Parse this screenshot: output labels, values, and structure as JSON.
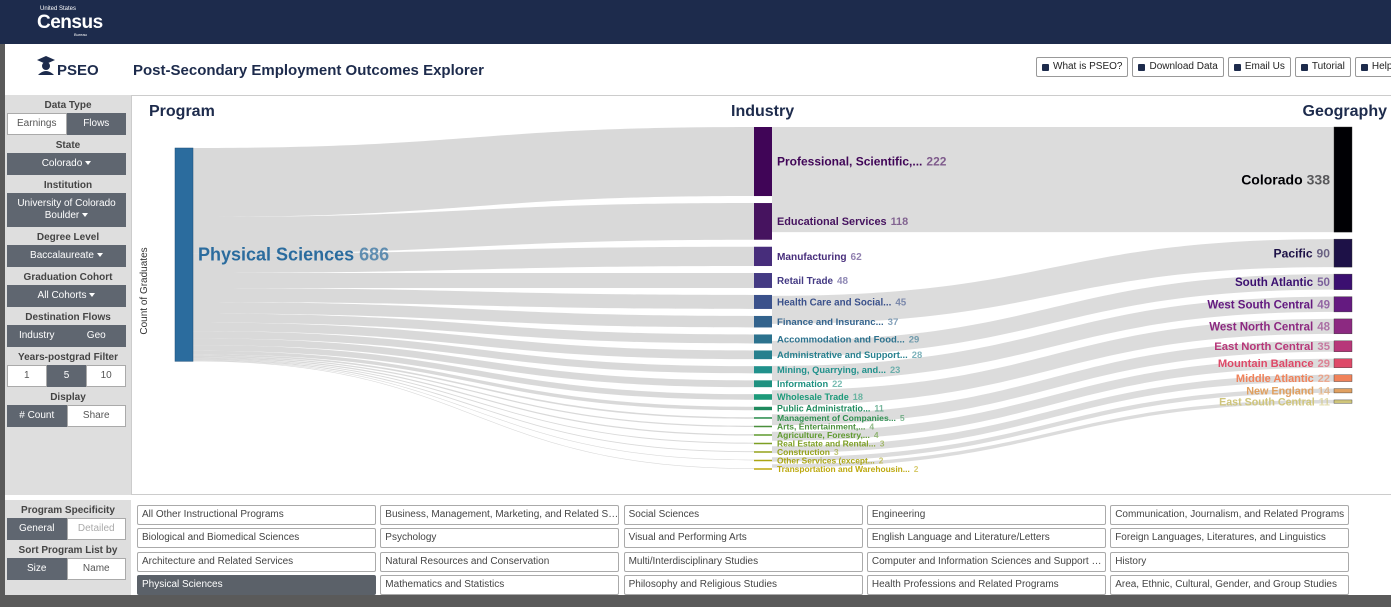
{
  "header": {
    "agency": [
      "United States",
      "Census",
      "Bureau"
    ],
    "app": "PSEO",
    "title": "Post-Secondary Employment Outcomes Explorer",
    "buttons": [
      "What is PSEO?",
      "Download Data",
      "Email Us",
      "Tutorial",
      "Help"
    ]
  },
  "sidebar": [
    {
      "label": "Data Type",
      "options": [
        {
          "text": "Earnings"
        },
        {
          "text": "Flows",
          "active": true
        }
      ]
    },
    {
      "label": "State",
      "options": [
        {
          "text": "Colorado",
          "active": true,
          "dropdown": true
        }
      ]
    },
    {
      "label": "Institution",
      "options": [
        {
          "text": "University of Colorado Boulder",
          "active": true,
          "dropdown": true
        }
      ]
    },
    {
      "label": "Degree Level",
      "options": [
        {
          "text": "Baccalaureate",
          "active": true,
          "dropdown": true
        }
      ]
    },
    {
      "label": "Graduation Cohort",
      "options": [
        {
          "text": "All Cohorts",
          "active": true,
          "dropdown": true
        }
      ]
    },
    {
      "label": "Destination Flows",
      "options": [
        {
          "text": "Industry",
          "active": true
        },
        {
          "text": "Geo",
          "active": true
        }
      ]
    },
    {
      "label": "Years-postgrad Filter",
      "options": [
        {
          "text": "1"
        },
        {
          "text": "5",
          "active": true
        },
        {
          "text": "10"
        }
      ]
    },
    {
      "label": "Display",
      "options": [
        {
          "text": "# Count",
          "active": true
        },
        {
          "text": "Share"
        }
      ]
    }
  ],
  "sankey": {
    "columns": [
      "Program",
      "Industry",
      "Geography"
    ],
    "axis_label": "Count of Graduates",
    "program": {
      "name": "Physical Sciences",
      "value": 686,
      "color": "#2b6c9e"
    },
    "industries": [
      {
        "name": "Professional, Scientific,...",
        "value": 222,
        "color": "#400557"
      },
      {
        "name": "Educational Services",
        "value": 118,
        "color": "#46135f"
      },
      {
        "name": "Manufacturing",
        "value": 62,
        "color": "#472d7b"
      },
      {
        "name": "Retail Trade",
        "value": 48,
        "color": "#443a83"
      },
      {
        "name": "Health Care and Social...",
        "value": 45,
        "color": "#3b518b"
      },
      {
        "name": "Finance and Insuranc...",
        "value": 37,
        "color": "#33638d"
      },
      {
        "name": "Accommodation and Food...",
        "value": 29,
        "color": "#2c728e"
      },
      {
        "name": "Administrative and Support...",
        "value": 28,
        "color": "#27808e"
      },
      {
        "name": "Mining, Quarrying, and...",
        "value": 23,
        "color": "#21918c"
      },
      {
        "name": "Information",
        "value": 22,
        "color": "#1f9180"
      },
      {
        "name": "Wholesale Trade",
        "value": 18,
        "color": "#1d9a7a"
      },
      {
        "name": "Public Administratio...",
        "value": 11,
        "color": "#1f8a5e"
      },
      {
        "name": "Management of Companies...",
        "value": 5,
        "color": "#2e8f50"
      },
      {
        "name": "Arts, Entertainment,...",
        "value": 4,
        "color": "#4a8f3c"
      },
      {
        "name": "Agriculture, Forestry,...",
        "value": 4,
        "color": "#5f9a2f"
      },
      {
        "name": "Real Estate and Rental...",
        "value": 3,
        "color": "#7d9f23"
      },
      {
        "name": "Construction",
        "value": 3,
        "color": "#95a21a"
      },
      {
        "name": "Other Services (except...",
        "value": 2,
        "color": "#aaa514"
      },
      {
        "name": "Transportation and Warehousin...",
        "value": 2,
        "color": "#bda90f"
      }
    ],
    "geographies": [
      {
        "name": "Colorado",
        "value": 338,
        "color": "#000004"
      },
      {
        "name": "Pacific",
        "value": 90,
        "color": "#1d1147"
      },
      {
        "name": "South Atlantic",
        "value": 50,
        "color": "#3b0f70"
      },
      {
        "name": "West South Central",
        "value": 49,
        "color": "#641a80"
      },
      {
        "name": "West North Central",
        "value": 48,
        "color": "#8c2981"
      },
      {
        "name": "East North Central",
        "value": 35,
        "color": "#b73779"
      },
      {
        "name": "Mountain Balance",
        "value": 29,
        "color": "#de4968"
      },
      {
        "name": "Middle Atlantic",
        "value": 22,
        "color": "#f0825a"
      },
      {
        "name": "New England",
        "value": 14,
        "color": "#e0a060"
      },
      {
        "name": "East South Central",
        "value": 11,
        "color": "#cfc57b"
      }
    ]
  },
  "program_list": {
    "rows": [
      [
        "All Other Instructional Programs",
        "Business, Management, Marketing, and Related Sup...",
        "Social Sciences",
        "Engineering",
        "Communication, Journalism, and Related Programs"
      ],
      [
        "Biological and Biomedical Sciences",
        "Psychology",
        "Visual and Performing Arts",
        "English Language and Literature/Letters",
        "Foreign Languages, Literatures, and Linguistics"
      ],
      [
        "Architecture and Related Services",
        "Natural Resources and Conservation",
        "Multi/Interdisciplinary Studies",
        "Computer and Information Sciences and Support Ser...",
        "History"
      ],
      [
        "Physical Sciences",
        "Mathematics and Statistics",
        "Philosophy and Religious Studies",
        "Health Professions and Related Programs",
        "Area, Ethnic, Cultural, Gender, and Group Studies"
      ]
    ],
    "selected": [
      3,
      0
    ]
  },
  "program_controls": [
    {
      "label": "Program Specificity",
      "options": [
        {
          "text": "General",
          "active": true
        },
        {
          "text": "Detailed",
          "disabled": true
        }
      ]
    },
    {
      "label": "Sort Program List by",
      "options": [
        {
          "text": "Size",
          "active": true
        },
        {
          "text": "Name"
        }
      ]
    }
  ]
}
